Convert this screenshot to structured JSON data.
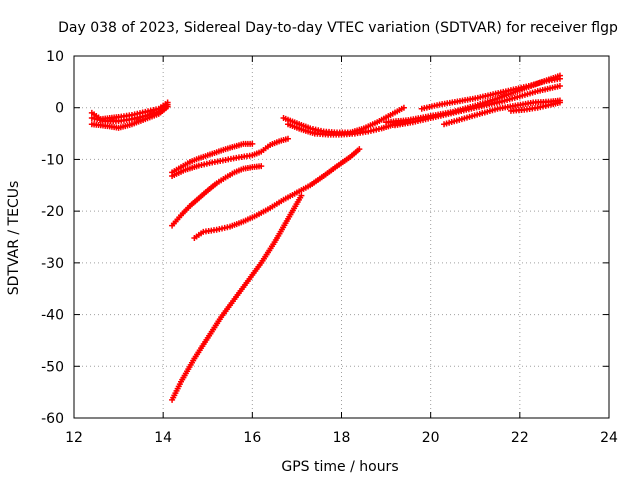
{
  "chart_data": {
    "type": "scatter",
    "title": "Day 038 of 2023, Sidereal Day-to-day VTEC variation (SDTVAR) for receiver flgp",
    "xlabel": "GPS time / hours",
    "ylabel": "SDTVAR / TECUs",
    "xlim": [
      12,
      24
    ],
    "ylim": [
      -60,
      10
    ],
    "xticks": [
      12,
      14,
      16,
      18,
      20,
      22,
      24
    ],
    "yticks": [
      -60,
      -50,
      -40,
      -30,
      -20,
      -10,
      0,
      10
    ],
    "xtick_labels": [
      "12",
      "14",
      "16",
      "18",
      "20",
      "22",
      "24"
    ],
    "ytick_labels": [
      "-60",
      "-50",
      "-40",
      "-30",
      "-20",
      "-10",
      "0",
      "10"
    ],
    "grid": true,
    "legend": "none",
    "marker": "plus",
    "color": "#ff0000",
    "series": [
      {
        "x": [
          12.4,
          12.6,
          12.8,
          13.0,
          13.3,
          13.6,
          13.9,
          14.1
        ],
        "y": [
          -1.0,
          -2.2,
          -2.0,
          -1.8,
          -1.4,
          -0.8,
          -0.2,
          1.0
        ]
      },
      {
        "x": [
          12.4,
          12.6,
          12.8,
          13.0,
          13.3,
          13.6,
          13.9,
          14.1
        ],
        "y": [
          -3.2,
          -3.4,
          -3.6,
          -3.9,
          -3.2,
          -2.2,
          -1.2,
          0.2
        ]
      },
      {
        "x": [
          12.4,
          12.7,
          13.0,
          13.3,
          13.6,
          13.9,
          14.1
        ],
        "y": [
          -2.0,
          -2.6,
          -2.6,
          -2.2,
          -1.6,
          -0.8,
          0.6
        ]
      },
      {
        "x": [
          14.2,
          14.4,
          14.6,
          14.8,
          15.0,
          15.2,
          15.4,
          15.6,
          15.8,
          16.0
        ],
        "y": [
          -12.5,
          -11.5,
          -10.5,
          -9.8,
          -9.2,
          -8.6,
          -8.0,
          -7.5,
          -7.0,
          -7.0
        ]
      },
      {
        "x": [
          14.2,
          14.5,
          14.8,
          15.1,
          15.4,
          15.7,
          16.0,
          16.2,
          16.4,
          16.6,
          16.8
        ],
        "y": [
          -13.2,
          -12.0,
          -11.2,
          -10.6,
          -10.1,
          -9.6,
          -9.2,
          -8.5,
          -7.2,
          -6.5,
          -6.0
        ]
      },
      {
        "x": [
          14.2,
          14.4,
          14.6,
          14.8,
          15.0,
          15.2,
          15.4,
          15.6,
          15.8,
          16.0,
          16.2
        ],
        "y": [
          -22.8,
          -20.8,
          -19.0,
          -17.5,
          -16.0,
          -14.6,
          -13.5,
          -12.5,
          -11.8,
          -11.5,
          -11.3
        ]
      },
      {
        "x": [
          14.7,
          14.9,
          15.2,
          15.5,
          15.8,
          16.1,
          16.4,
          16.7,
          17.0,
          17.3,
          17.6,
          17.9,
          18.2,
          18.4
        ],
        "y": [
          -25.2,
          -24.0,
          -23.6,
          -23.0,
          -22.0,
          -20.8,
          -19.4,
          -17.8,
          -16.4,
          -15.0,
          -13.2,
          -11.3,
          -9.5,
          -8.0
        ]
      },
      {
        "x": [
          14.2,
          14.4,
          14.7,
          15.0,
          15.3,
          15.6,
          15.9,
          16.2,
          16.5,
          16.8,
          17.1
        ],
        "y": [
          -56.5,
          -53.0,
          -48.5,
          -44.5,
          -40.5,
          -37.0,
          -33.5,
          -30.0,
          -26.0,
          -21.5,
          -17.0
        ]
      },
      {
        "x": [
          16.7,
          17.0,
          17.3,
          17.6,
          17.9,
          18.2,
          18.5,
          18.8,
          19.1,
          19.4
        ],
        "y": [
          -2.0,
          -3.0,
          -4.0,
          -4.6,
          -4.8,
          -4.8,
          -4.0,
          -2.8,
          -1.4,
          0.0
        ]
      },
      {
        "x": [
          16.8,
          17.1,
          17.4,
          17.7,
          18.0,
          18.3,
          18.6,
          18.9,
          19.2,
          19.5
        ],
        "y": [
          -3.2,
          -4.2,
          -5.0,
          -5.2,
          -5.2,
          -5.0,
          -4.6,
          -4.0,
          -3.2,
          -2.6
        ]
      },
      {
        "x": [
          19.0,
          19.5,
          20.0,
          20.5,
          21.0,
          21.5,
          22.0,
          22.5,
          22.9
        ],
        "y": [
          -2.8,
          -2.4,
          -1.6,
          -0.8,
          0.4,
          1.8,
          3.4,
          5.0,
          6.2
        ]
      },
      {
        "x": [
          19.2,
          19.6,
          20.0,
          20.4,
          20.8,
          21.2,
          21.6,
          22.0,
          22.4,
          22.9
        ],
        "y": [
          -3.4,
          -2.8,
          -2.0,
          -1.2,
          -0.4,
          0.4,
          1.2,
          2.2,
          3.2,
          4.2
        ]
      },
      {
        "x": [
          19.8,
          20.2,
          20.6,
          21.0,
          21.4,
          21.8,
          22.2,
          22.6,
          22.9
        ],
        "y": [
          -0.2,
          0.6,
          1.2,
          1.8,
          2.6,
          3.4,
          4.2,
          5.2,
          5.6
        ]
      },
      {
        "x": [
          20.3,
          20.7,
          21.1,
          21.5,
          21.9,
          22.3,
          22.7,
          22.9
        ],
        "y": [
          -3.2,
          -2.2,
          -1.2,
          -0.2,
          0.4,
          1.0,
          1.2,
          1.4
        ]
      },
      {
        "x": [
          21.8,
          22.1,
          22.4,
          22.7,
          22.9
        ],
        "y": [
          -0.6,
          -0.4,
          0.0,
          0.6,
          1.0
        ]
      }
    ]
  }
}
